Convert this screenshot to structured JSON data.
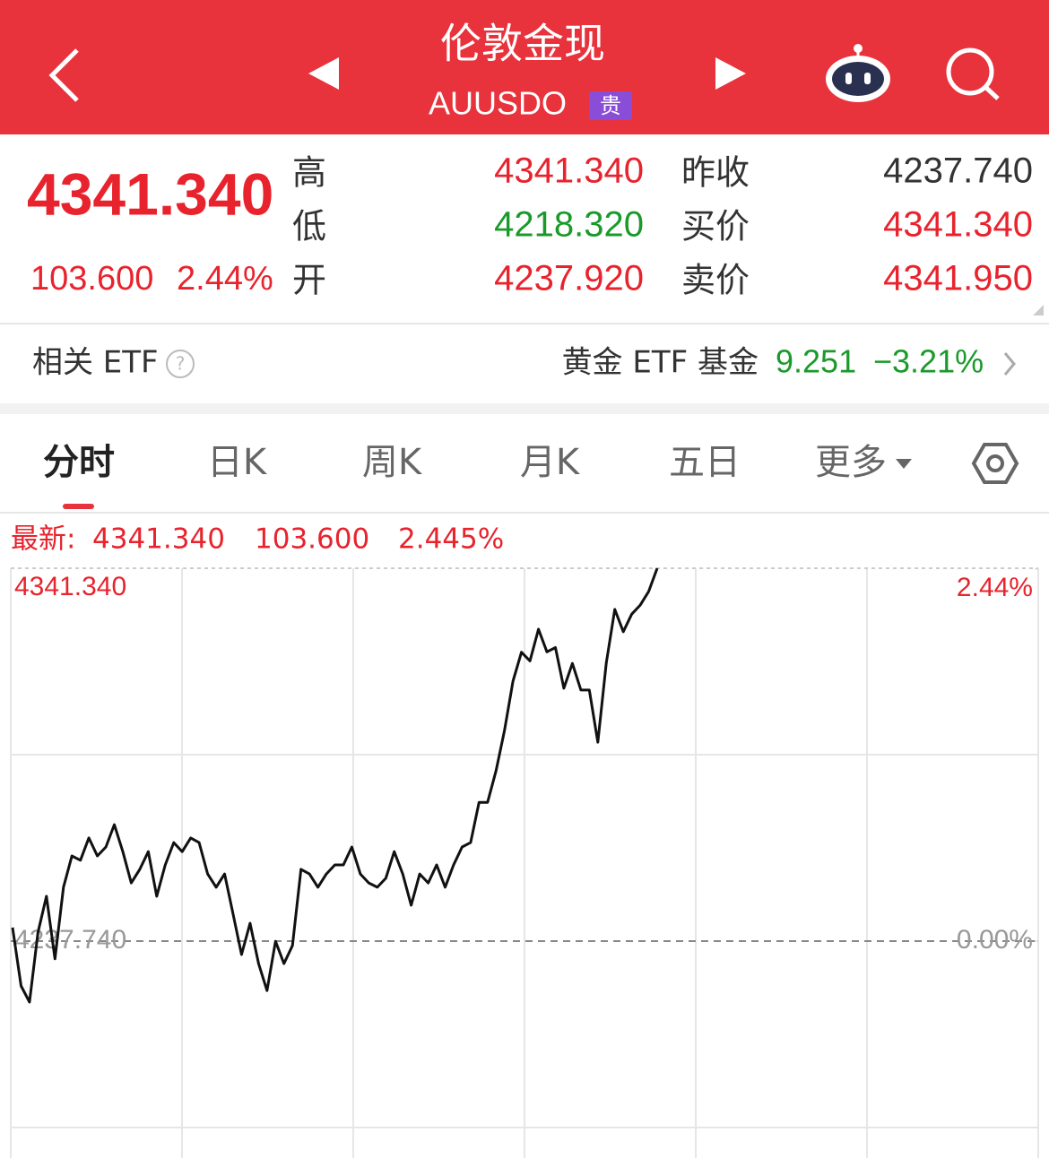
{
  "header": {
    "title": "伦敦金现",
    "code": "AUUSDO",
    "badge": "贵"
  },
  "quote": {
    "price": "4341.340",
    "change": "103.600",
    "change_pct": "2.44%",
    "left_fields": [
      {
        "label": "高",
        "value": "4341.340"
      },
      {
        "label": "低",
        "value": "4218.320"
      },
      {
        "label": "开",
        "value": "4237.920"
      }
    ],
    "right_fields": [
      {
        "label": "昨收",
        "value": "4237.740"
      },
      {
        "label": "买价",
        "value": "4341.340"
      },
      {
        "label": "卖价",
        "value": "4341.950"
      }
    ]
  },
  "etf": {
    "label": "相关 ETF",
    "name": "黄金 ETF 基金",
    "price": "9.251",
    "change_pct": "−3.21%"
  },
  "tabs": [
    "分时",
    "日K",
    "周K",
    "月K",
    "五日",
    "更多"
  ],
  "chart_data": {
    "type": "line",
    "info": {
      "label": "最新:",
      "price": "4341.340",
      "change": "103.600",
      "change_pct": "2.445%"
    },
    "color": "#111111",
    "values": [
      4241.5,
      4225.3,
      4220.8,
      4240.2,
      4250.2,
      4232.8,
      4252.7,
      4261.4,
      4260.2,
      4266.4,
      4261.4,
      4263.9,
      4270.1,
      4262.6,
      4253.9,
      4257.7,
      4262.6,
      4250.2,
      4258.9,
      4265.1,
      4262.6,
      4266.4,
      4265.1,
      4256.4,
      4252.7,
      4256.4,
      4245.2,
      4234.0,
      4242.7,
      4231.5,
      4224.0,
      4237.7,
      4231.5,
      4236.5,
      4257.7,
      4256.4,
      4252.7,
      4256.4,
      4258.9,
      4258.9,
      4263.9,
      4256.4,
      4253.9,
      4252.7,
      4255.2,
      4262.6,
      4256.4,
      4247.7,
      4256.4,
      4253.9,
      4258.9,
      4252.7,
      4258.9,
      4263.9,
      4265.1,
      4276.3,
      4276.3,
      4285.1,
      4296.3,
      4310.0,
      4318.0,
      4315.6,
      4324.4,
      4318.1,
      4319.3,
      4308.0,
      4314.9,
      4307.5,
      4307.5,
      4293.0,
      4315.0,
      4329.9,
      4323.7,
      4328.6,
      4331.1,
      4334.9,
      4341.34
    ],
    "ylim": [
      4134.14,
      4341.34
    ],
    "yticks": [
      {
        "value": 4341.34,
        "label": "4341.340"
      },
      {
        "value": 4237.74,
        "label": "4237.740"
      }
    ],
    "y2lim": [
      -2.445,
      2.445
    ],
    "y2ticks": [
      {
        "value": 2.44,
        "label": "2.44%"
      },
      {
        "value": 0,
        "label": "0.00%"
      }
    ]
  }
}
